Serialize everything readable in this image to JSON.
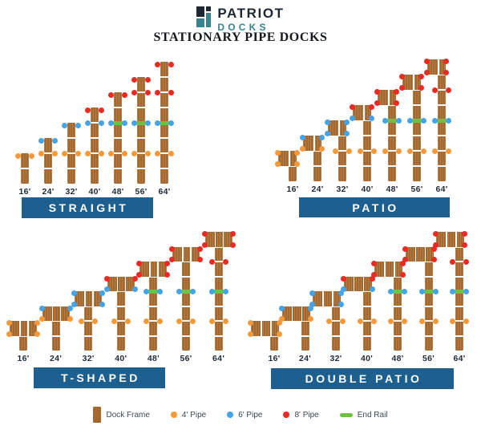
{
  "header": {
    "brand_line1": "PATRIOT",
    "brand_line2": "DOCKS",
    "title": "STATIONARY PIPE DOCKS"
  },
  "colors": {
    "frame": "#A5682C",
    "pipe4": "#F5993B",
    "pipe6": "#45A3E8",
    "pipe8": "#EC2A24",
    "end_rail": "#72BF44",
    "bar_bg": "#1D5F8E",
    "bar_text": "#FFFFFF",
    "label_text": "#1F2A35",
    "legend_text": "#3C4850",
    "brand_navy": "#1B2834",
    "brand_teal": "#37828E",
    "title_text": "#15191E"
  },
  "legend": {
    "items": [
      {
        "label": "Dock Frame",
        "swatch": "frame"
      },
      {
        "label": "4' Pipe",
        "swatch": "pipe4"
      },
      {
        "label": "6' Pipe",
        "swatch": "pipe6"
      },
      {
        "label": "8' Pipe",
        "swatch": "pipe8"
      },
      {
        "label": "End Rail",
        "swatch": "end_rail"
      }
    ]
  },
  "sections": [
    {
      "name": "STRAIGHT",
      "head_style": "none",
      "docks": [
        {
          "label": "16'",
          "segments": 2,
          "top": "pipe4",
          "junctions": [],
          "rail": null
        },
        {
          "label": "24'",
          "segments": 3,
          "top": "pipe6",
          "junctions": [
            [
              2,
              "pipe4"
            ]
          ],
          "rail": null
        },
        {
          "label": "32'",
          "segments": 4,
          "top": "pipe6",
          "junctions": [
            [
              2,
              "pipe4"
            ]
          ],
          "rail": null
        },
        {
          "label": "40'",
          "segments": 5,
          "top": "pipe8",
          "junctions": [
            [
              4,
              "pipe6"
            ],
            [
              2,
              "pipe4"
            ]
          ],
          "rail": null
        },
        {
          "label": "48'",
          "segments": 6,
          "top": "pipe8",
          "junctions": [
            [
              4,
              "pipe6"
            ],
            [
              2,
              "pipe4"
            ]
          ],
          "rail": 4
        },
        {
          "label": "56'",
          "segments": 7,
          "top": "pipe8",
          "junctions": [
            [
              6,
              "pipe8"
            ],
            [
              4,
              "pipe6"
            ],
            [
              2,
              "pipe4"
            ]
          ],
          "rail": 4
        },
        {
          "label": "64'",
          "segments": 8,
          "top": "pipe8",
          "junctions": [
            [
              6,
              "pipe8"
            ],
            [
              4,
              "pipe6"
            ],
            [
              2,
              "pipe4"
            ]
          ],
          "rail": 4
        }
      ]
    },
    {
      "name": "PATIO",
      "head_style": "patio",
      "docks": [
        {
          "label": "16'",
          "segments": 2,
          "head_top": "pipe4",
          "head_bottom": "pipe4",
          "junctions": [],
          "rail": null
        },
        {
          "label": "24'",
          "segments": 3,
          "head_top": "pipe6",
          "head_bottom": "pipe4",
          "junctions": [],
          "rail": null
        },
        {
          "label": "32'",
          "segments": 4,
          "head_top": "pipe6",
          "head_bottom": "pipe6",
          "junctions": [
            [
              2,
              "pipe4"
            ]
          ],
          "rail": null
        },
        {
          "label": "40'",
          "segments": 5,
          "head_top": "pipe8",
          "head_bottom": "pipe6",
          "junctions": [
            [
              2,
              "pipe4"
            ]
          ],
          "rail": null
        },
        {
          "label": "48'",
          "segments": 6,
          "head_top": "pipe8",
          "head_bottom": "pipe8",
          "junctions": [
            [
              4,
              "pipe6"
            ],
            [
              2,
              "pipe4"
            ]
          ],
          "rail": 4
        },
        {
          "label": "56'",
          "segments": 7,
          "head_top": "pipe8",
          "head_bottom": "pipe8",
          "junctions": [
            [
              4,
              "pipe6"
            ],
            [
              2,
              "pipe4"
            ]
          ],
          "rail": 4
        },
        {
          "label": "64'",
          "segments": 8,
          "head_top": "pipe8",
          "head_bottom": "pipe8",
          "junctions": [
            [
              6,
              "pipe8"
            ],
            [
              4,
              "pipe6"
            ],
            [
              2,
              "pipe4"
            ]
          ],
          "rail": 4
        }
      ]
    },
    {
      "name": "T-SHAPED",
      "head_style": "t",
      "docks": [
        {
          "label": "16'",
          "segments": 2,
          "head_top": "pipe4",
          "head_bottom": "pipe4",
          "junctions": [],
          "rail": null
        },
        {
          "label": "24'",
          "segments": 3,
          "head_top": "pipe6",
          "head_bottom": "pipe4",
          "junctions": [],
          "rail": null
        },
        {
          "label": "32'",
          "segments": 4,
          "head_top": "pipe6",
          "head_bottom": "pipe6",
          "junctions": [
            [
              2,
              "pipe4"
            ]
          ],
          "rail": null
        },
        {
          "label": "40'",
          "segments": 5,
          "head_top": "pipe8",
          "head_bottom": "pipe6",
          "junctions": [
            [
              2,
              "pipe4"
            ]
          ],
          "rail": null
        },
        {
          "label": "48'",
          "segments": 6,
          "head_top": "pipe8",
          "head_bottom": "pipe8",
          "junctions": [
            [
              4,
              "pipe6"
            ],
            [
              2,
              "pipe4"
            ]
          ],
          "rail": 4
        },
        {
          "label": "56'",
          "segments": 7,
          "head_top": "pipe8",
          "head_bottom": "pipe8",
          "junctions": [
            [
              4,
              "pipe6"
            ],
            [
              2,
              "pipe4"
            ]
          ],
          "rail": 4
        },
        {
          "label": "64'",
          "segments": 8,
          "head_top": "pipe8",
          "head_bottom": "pipe8",
          "junctions": [
            [
              6,
              "pipe8"
            ],
            [
              4,
              "pipe6"
            ],
            [
              2,
              "pipe4"
            ]
          ],
          "rail": 4
        }
      ]
    },
    {
      "name": "DOUBLE PATIO",
      "head_style": "double",
      "docks": [
        {
          "label": "16'",
          "segments": 2,
          "head_top": "pipe4",
          "head_bottom": "pipe4",
          "junctions": [],
          "rail": null
        },
        {
          "label": "24'",
          "segments": 3,
          "head_top": "pipe6",
          "head_bottom": "pipe4",
          "junctions": [],
          "rail": null
        },
        {
          "label": "32'",
          "segments": 4,
          "head_top": "pipe6",
          "head_bottom": "pipe6",
          "junctions": [
            [
              2,
              "pipe4"
            ]
          ],
          "rail": null
        },
        {
          "label": "40'",
          "segments": 5,
          "head_top": "pipe8",
          "head_bottom": "pipe6",
          "junctions": [
            [
              2,
              "pipe4"
            ]
          ],
          "rail": null
        },
        {
          "label": "48'",
          "segments": 6,
          "head_top": "pipe8",
          "head_bottom": "pipe8",
          "junctions": [
            [
              4,
              "pipe6"
            ],
            [
              2,
              "pipe4"
            ]
          ],
          "rail": 4
        },
        {
          "label": "56'",
          "segments": 7,
          "head_top": "pipe8",
          "head_bottom": "pipe8",
          "junctions": [
            [
              4,
              "pipe6"
            ],
            [
              2,
              "pipe4"
            ]
          ],
          "rail": 4
        },
        {
          "label": "64'",
          "segments": 8,
          "head_top": "pipe8",
          "head_bottom": "pipe8",
          "junctions": [
            [
              6,
              "pipe8"
            ],
            [
              4,
              "pipe6"
            ],
            [
              2,
              "pipe4"
            ]
          ],
          "rail": 4
        }
      ]
    }
  ]
}
